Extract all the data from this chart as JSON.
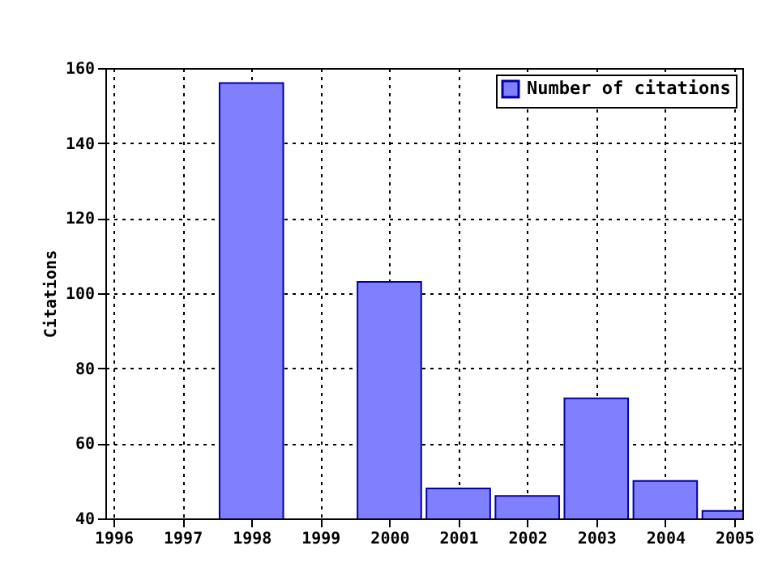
{
  "chart_data": {
    "type": "bar",
    "x": [
      1998,
      2000,
      2001,
      2002,
      2003,
      2004,
      2005
    ],
    "series": [
      {
        "name": "Number of citations",
        "color": "#8080ff",
        "values": [
          156,
          103,
          48,
          46,
          72,
          50,
          42
        ]
      }
    ],
    "ylabel": "Citations",
    "xlim": [
      1996,
      2005
    ],
    "xticks": [
      1996,
      1997,
      1998,
      1999,
      2000,
      2001,
      2002,
      2003,
      2004,
      2005
    ],
    "ylim": [
      40,
      160
    ],
    "yticks": [
      40,
      60,
      80,
      100,
      120,
      140,
      160
    ],
    "grid": true,
    "legend": "top right"
  }
}
